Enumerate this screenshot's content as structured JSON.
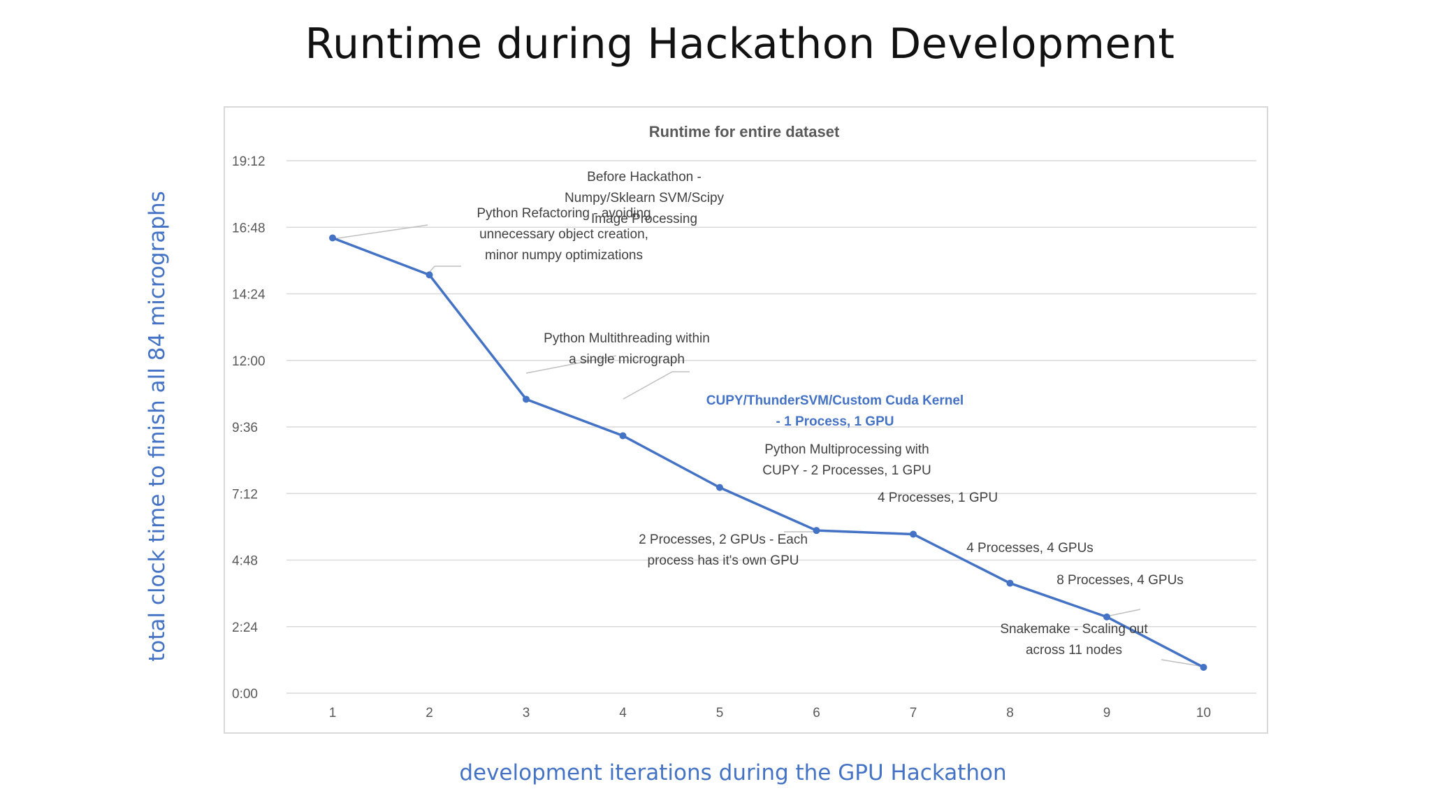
{
  "slide": {
    "title": "Runtime during Hackathon Development",
    "y_caption": "total clock time to finish all 84 micrographs",
    "x_caption": "development iterations during the GPU Hackathon"
  },
  "chart_data": {
    "type": "line",
    "title": "Runtime for entire dataset",
    "xlabel": "",
    "ylabel": "",
    "x": [
      1,
      2,
      3,
      4,
      5,
      6,
      7,
      8,
      9,
      10
    ],
    "x_tick_labels": [
      "1",
      "2",
      "3",
      "4",
      "5",
      "6",
      "7",
      "8",
      "9",
      "10"
    ],
    "y_unit": "minutes (m:ss)",
    "ylim": [
      0,
      1152
    ],
    "y_ticks": [
      0,
      144,
      288,
      432,
      576,
      720,
      864,
      1008,
      1152
    ],
    "y_tick_labels": [
      "0:00",
      "2:24",
      "4:48",
      "7:12",
      "9:36",
      "12:00",
      "14:24",
      "16:48",
      "19:12"
    ],
    "grid": true,
    "legend": "none",
    "series": [
      {
        "color": "#4472c4",
        "values": [
          985,
          905,
          636,
          557,
          445,
          352,
          344,
          238,
          165,
          56
        ],
        "value_labels": [
          "16:25",
          "15:05",
          "10:36",
          "9:17",
          "7:25",
          "5:52",
          "5:44",
          "3:58",
          "2:45",
          "0:56"
        ]
      }
    ],
    "annotations": [
      {
        "point": 1,
        "lines": [
          "Before Hackathon -",
          "Numpy/Sklearn SVM/Scipy",
          "Image Processing"
        ],
        "highlight": false
      },
      {
        "point": 2,
        "lines": [
          "Python Refactoring - avoiding",
          "unnecessary object creation,",
          "minor numpy optimizations"
        ],
        "highlight": false
      },
      {
        "point": 3,
        "lines": [
          "Python Multithreading within",
          "a single micrograph"
        ],
        "highlight": false
      },
      {
        "point": 4,
        "lines": [
          "CUPY/ThunderSVM/Custom Cuda Kernel",
          "- 1 Process,  1 GPU"
        ],
        "highlight": true,
        "highlight_color": "#4472c4"
      },
      {
        "point": 5,
        "lines": [
          "Python Multiprocessing with",
          "CUPY - 2 Processes, 1 GPU"
        ],
        "highlight": false
      },
      {
        "point": 6,
        "lines": [
          "2 Processes, 2 GPUs - Each",
          "process has it's own GPU"
        ],
        "highlight": false
      },
      {
        "point": 7,
        "lines": [
          "4 Processes,  1 GPU"
        ],
        "highlight": false
      },
      {
        "point": 8,
        "lines": [
          "4 Processes, 4 GPUs"
        ],
        "highlight": false
      },
      {
        "point": 9,
        "lines": [
          "8 Processes, 4 GPUs"
        ],
        "highlight": false
      },
      {
        "point": 10,
        "lines": [
          "Snakemake - Scaling out",
          "across 11 nodes"
        ],
        "highlight": false
      }
    ]
  }
}
